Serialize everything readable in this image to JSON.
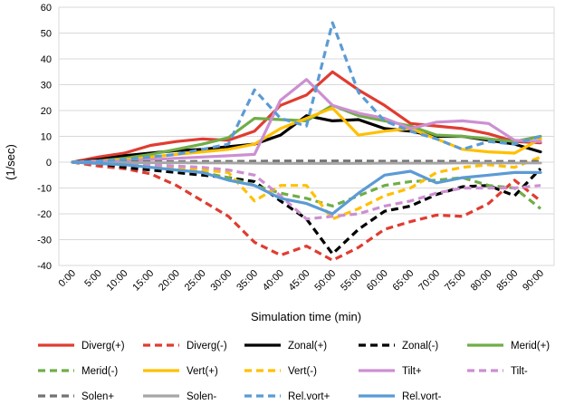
{
  "chart_data": {
    "type": "line",
    "title": "",
    "xlabel": "Simulation time (min)",
    "ylabel": "(1/sec)",
    "ylim": [
      -40,
      60
    ],
    "yticks": [
      -40,
      -30,
      -20,
      -10,
      0,
      10,
      20,
      30,
      40,
      50,
      60
    ],
    "grid": true,
    "legend_position": "bottom",
    "x": [
      "0:00",
      "5:00",
      "10:00",
      "15:00",
      "20:00",
      "25:00",
      "30:00",
      "35:00",
      "40:00",
      "45:00",
      "50:00",
      "55:00",
      "60:00",
      "65:00",
      "70:00",
      "75:00",
      "80:00",
      "85:00",
      "90:00"
    ],
    "series": [
      {
        "name": "Diverg(+)",
        "color": "#e03c31",
        "dash": false,
        "values": [
          0,
          2,
          3.5,
          6.5,
          8,
          9,
          8.5,
          12,
          22,
          26,
          35,
          28,
          22,
          15,
          14,
          13,
          11,
          8,
          7.5
        ]
      },
      {
        "name": "Diverg(-)",
        "color": "#e03c31",
        "dash": true,
        "values": [
          0,
          -1.5,
          -2.5,
          -4.5,
          -9,
          -15,
          -21,
          -31,
          -36,
          -32.5,
          -38,
          -33,
          -26,
          -23,
          -20.5,
          -21,
          -16,
          -7,
          -15
        ]
      },
      {
        "name": "Zonal(+)",
        "color": "#000000",
        "dash": false,
        "values": [
          0,
          1,
          2.5,
          3.5,
          4.5,
          5,
          6,
          7,
          10.5,
          18,
          16,
          16.5,
          13,
          12,
          10,
          10,
          8.5,
          7,
          4
        ]
      },
      {
        "name": "Zonal(-)",
        "color": "#000000",
        "dash": true,
        "values": [
          0,
          -0.5,
          -2,
          -3,
          -4,
          -5,
          -6,
          -7.5,
          -15,
          -22,
          -35.5,
          -26,
          -19,
          -17,
          -12.5,
          -9.5,
          -9,
          -13,
          -2.5
        ]
      },
      {
        "name": "Merid(+)",
        "color": "#70ad47",
        "dash": false,
        "values": [
          0,
          0.5,
          1.5,
          3,
          5,
          7,
          9.5,
          17,
          16.5,
          16,
          22,
          18,
          16,
          14,
          10.5,
          10,
          9,
          8,
          10
        ]
      },
      {
        "name": "Merid(-)",
        "color": "#70ad47",
        "dash": true,
        "values": [
          0,
          -0.5,
          -1,
          -2,
          -3,
          -4,
          -6,
          -9,
          -12,
          -14,
          -17,
          -13,
          -9,
          -7.5,
          -7,
          -6,
          -9,
          -10,
          -18
        ]
      },
      {
        "name": "Vert(+)",
        "color": "#ffc000",
        "dash": false,
        "values": [
          0,
          0.5,
          1,
          2,
          3,
          4,
          5,
          7,
          13,
          17,
          21,
          10.5,
          12,
          13,
          9,
          5,
          4,
          3.5,
          9
        ]
      },
      {
        "name": "Vert(-)",
        "color": "#ffc000",
        "dash": true,
        "values": [
          0,
          -0.5,
          -1,
          -1.5,
          -2,
          -3,
          -4,
          -15,
          -9,
          -9,
          -22,
          -18,
          -13,
          -10,
          -4,
          -2,
          -1,
          -2,
          2
        ]
      },
      {
        "name": "Tilt+",
        "color": "#cc8fd1",
        "dash": false,
        "values": [
          0,
          0.5,
          0.5,
          1,
          1.5,
          2,
          2.5,
          3,
          24,
          32,
          22,
          19,
          17,
          13,
          15.5,
          16,
          15,
          8.5,
          8
        ]
      },
      {
        "name": "Tilt-",
        "color": "#cc8fd1",
        "dash": true,
        "values": [
          0,
          -0.5,
          -0.5,
          -1,
          -1.5,
          -2,
          -3,
          -5,
          -13,
          -22,
          -21,
          -20,
          -17,
          -15,
          -12,
          -10,
          -10,
          -10,
          -9
        ]
      },
      {
        "name": "Solen+",
        "color": "#737373",
        "dash": true,
        "values": [
          0,
          0,
          0.2,
          0.2,
          0.2,
          0.3,
          0.3,
          0.4,
          0.5,
          0.5,
          0.5,
          0.5,
          0.4,
          0.4,
          0.4,
          0.3,
          0.3,
          0.3,
          0.3
        ]
      },
      {
        "name": "Solen-",
        "color": "#a6a6a6",
        "dash": false,
        "values": [
          0,
          0,
          -0.2,
          -0.2,
          -0.2,
          -0.3,
          -0.3,
          -0.4,
          -0.5,
          -0.5,
          -0.5,
          -0.5,
          -0.4,
          -0.4,
          -0.4,
          -0.3,
          -0.3,
          -0.3,
          -0.3
        ]
      },
      {
        "name": "Rel.vort+",
        "color": "#5b9bd5",
        "dash": true,
        "values": [
          0,
          0.5,
          1,
          2,
          3,
          5,
          7,
          28,
          17,
          14,
          54,
          27,
          16,
          12,
          9,
          5,
          8,
          7,
          10
        ]
      },
      {
        "name": "Rel.vort-",
        "color": "#5b9bd5",
        "dash": false,
        "values": [
          0,
          -0.5,
          -1,
          -2,
          -3,
          -4,
          -7,
          -9,
          -14,
          -16,
          -20,
          -12,
          -5,
          -3.5,
          -8,
          -6,
          -5,
          -4,
          -4
        ]
      }
    ]
  }
}
